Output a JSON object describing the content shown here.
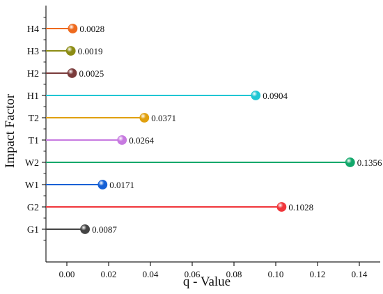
{
  "chart_data": {
    "type": "lollipop",
    "title": "",
    "xlabel": "q - Value",
    "ylabel": "Impact Factor",
    "xlim": [
      -0.01,
      0.15
    ],
    "xticks": [
      0.0,
      0.02,
      0.04,
      0.06,
      0.08,
      0.1,
      0.12,
      0.14
    ],
    "xtick_labels": [
      "0.00",
      "0.02",
      "0.04",
      "0.06",
      "0.08",
      "0.10",
      "0.12",
      "0.14"
    ],
    "grid": false,
    "legend": "none",
    "items": [
      {
        "category": "H4",
        "value": 0.0028,
        "label": "0.0028",
        "color": "#ee6a1e"
      },
      {
        "category": "H3",
        "value": 0.0019,
        "label": "0.0019",
        "color": "#8c8c14"
      },
      {
        "category": "H2",
        "value": 0.0025,
        "label": "0.0025",
        "color": "#7a3b3b"
      },
      {
        "category": "H1",
        "value": 0.0904,
        "label": "0.0904",
        "color": "#1fc6d3"
      },
      {
        "category": "T2",
        "value": 0.0371,
        "label": "0.0371",
        "color": "#e0a00e"
      },
      {
        "category": "T1",
        "value": 0.0264,
        "label": "0.0264",
        "color": "#c77ae0"
      },
      {
        "category": "W2",
        "value": 0.1356,
        "label": "0.1356",
        "color": "#13a86b"
      },
      {
        "category": "W1",
        "value": 0.0171,
        "label": "0.0171",
        "color": "#1560d6"
      },
      {
        "category": "G2",
        "value": 0.1028,
        "label": "0.1028",
        "color": "#f0363b"
      },
      {
        "category": "G1",
        "value": 0.0087,
        "label": "0.0087",
        "color": "#444444"
      }
    ]
  }
}
